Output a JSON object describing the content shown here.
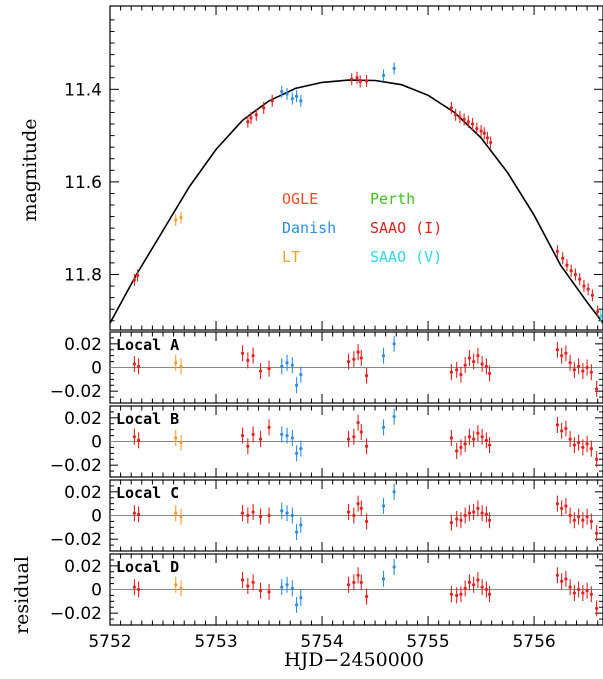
{
  "chart_data": [
    {
      "type": "scatter",
      "panel": "main",
      "ylabel": "magnitude",
      "y_inverted": true,
      "xlim": [
        5752,
        5756.65
      ],
      "ylim": [
        11.92,
        11.22
      ],
      "yticks": [
        11.4,
        11.6,
        11.8
      ],
      "ytick_labels": [
        "11.4",
        "11.6",
        "11.8"
      ],
      "grid": false,
      "legend_position": "center",
      "legend": [
        {
          "name": "OGLE",
          "color": "#ff4c1f"
        },
        {
          "name": "Perth",
          "color": "#3ec61c"
        },
        {
          "name": "Danish",
          "color": "#2c8ee6"
        },
        {
          "name": "SAAO (I)",
          "color": "#e6221e"
        },
        {
          "name": "LT",
          "color": "#f59e2a"
        },
        {
          "name": "SAAO (V)",
          "color": "#2fd9e8"
        }
      ],
      "model_curve": {
        "x": [
          5752.0,
          5752.25,
          5752.5,
          5752.75,
          5753.0,
          5753.25,
          5753.5,
          5753.75,
          5754.0,
          5754.25,
          5754.5,
          5754.75,
          5755.0,
          5755.25,
          5755.5,
          5755.75,
          5756.0,
          5756.25,
          5756.5,
          5756.65
        ],
        "y": [
          11.905,
          11.8,
          11.705,
          11.61,
          11.53,
          11.467,
          11.425,
          11.398,
          11.385,
          11.38,
          11.381,
          11.39,
          11.413,
          11.45,
          11.505,
          11.58,
          11.672,
          11.78,
          11.86,
          11.905
        ]
      },
      "series": [
        {
          "name": "SAAO (I)",
          "points": [
            [
              5752.23,
              11.812
            ],
            [
              5752.26,
              11.802
            ],
            [
              5753.3,
              11.47
            ],
            [
              5753.33,
              11.462
            ],
            [
              5753.38,
              11.455
            ],
            [
              5753.45,
              11.44
            ],
            [
              5753.53,
              11.425
            ],
            [
              5754.28,
              11.378
            ],
            [
              5754.33,
              11.375
            ],
            [
              5754.36,
              11.383
            ],
            [
              5754.42,
              11.382
            ],
            [
              5755.22,
              11.44
            ],
            [
              5755.26,
              11.455
            ],
            [
              5755.3,
              11.46
            ],
            [
              5755.34,
              11.465
            ],
            [
              5755.38,
              11.47
            ],
            [
              5755.42,
              11.475
            ],
            [
              5755.46,
              11.485
            ],
            [
              5755.5,
              11.49
            ],
            [
              5755.53,
              11.495
            ],
            [
              5755.56,
              11.505
            ],
            [
              5755.59,
              11.515
            ],
            [
              5756.22,
              11.75
            ],
            [
              5756.27,
              11.765
            ],
            [
              5756.31,
              11.78
            ],
            [
              5756.35,
              11.792
            ],
            [
              5756.39,
              11.8
            ],
            [
              5756.43,
              11.81
            ],
            [
              5756.47,
              11.825
            ],
            [
              5756.51,
              11.832
            ],
            [
              5756.55,
              11.845
            ],
            [
              5756.6,
              11.88
            ]
          ]
        },
        {
          "name": "LT",
          "points": [
            [
              5752.62,
              11.682
            ],
            [
              5752.67,
              11.677
            ]
          ]
        },
        {
          "name": "Danish",
          "points": [
            [
              5753.62,
              11.405
            ],
            [
              5753.67,
              11.41
            ],
            [
              5753.72,
              11.42
            ],
            [
              5753.76,
              11.415
            ],
            [
              5753.8,
              11.425
            ],
            [
              5754.58,
              11.37
            ],
            [
              5754.68,
              11.355
            ]
          ]
        },
        {
          "name": "SAAO (V)",
          "points": [
            [
              5756.63,
              11.89
            ]
          ]
        }
      ]
    },
    {
      "type": "scatter",
      "panel": "residual",
      "label": "Local A",
      "ylim": [
        -0.03,
        0.03
      ],
      "yticks": [
        0.02,
        0,
        -0.02
      ],
      "ytick_labels": [
        "0.02",
        "0",
        "−0.02"
      ],
      "series": [
        {
          "name": "SAAO (I)",
          "points": [
            [
              5752.23,
              0.003
            ],
            [
              5752.27,
              0.001
            ],
            [
              5753.25,
              0.012
            ],
            [
              5753.3,
              0.006
            ],
            [
              5753.35,
              0.01
            ],
            [
              5753.42,
              -0.003
            ],
            [
              5753.5,
              -0.001
            ],
            [
              5754.25,
              0.005
            ],
            [
              5754.3,
              0.007
            ],
            [
              5754.34,
              0.013
            ],
            [
              5754.37,
              0.008
            ],
            [
              5754.42,
              -0.007
            ],
            [
              5755.22,
              -0.004
            ],
            [
              5755.27,
              -0.002
            ],
            [
              5755.31,
              -0.006
            ],
            [
              5755.35,
              0.002
            ],
            [
              5755.39,
              0.008
            ],
            [
              5755.43,
              0.005
            ],
            [
              5755.47,
              0.01
            ],
            [
              5755.51,
              0.003
            ],
            [
              5755.55,
              0.001
            ],
            [
              5755.58,
              -0.005
            ],
            [
              5756.22,
              0.015
            ],
            [
              5756.26,
              0.01
            ],
            [
              5756.3,
              0.012
            ],
            [
              5756.34,
              0.004
            ],
            [
              5756.38,
              -0.002
            ],
            [
              5756.42,
              0.001
            ],
            [
              5756.46,
              -0.003
            ],
            [
              5756.5,
              0.0
            ],
            [
              5756.54,
              -0.004
            ],
            [
              5756.59,
              -0.018
            ]
          ]
        },
        {
          "name": "LT",
          "points": [
            [
              5752.62,
              0.004
            ],
            [
              5752.67,
              0.001
            ]
          ]
        },
        {
          "name": "Danish",
          "points": [
            [
              5753.62,
              0.001
            ],
            [
              5753.67,
              0.004
            ],
            [
              5753.72,
              0.002
            ],
            [
              5753.76,
              -0.015
            ],
            [
              5753.8,
              -0.006
            ],
            [
              5754.58,
              0.01
            ],
            [
              5754.68,
              0.02
            ]
          ]
        }
      ]
    },
    {
      "type": "scatter",
      "panel": "residual",
      "label": "Local B",
      "ylim": [
        -0.03,
        0.03
      ],
      "yticks": [
        0.02,
        0,
        -0.02
      ],
      "ytick_labels": [
        "0.02",
        "0",
        "−0.02"
      ],
      "series": [
        {
          "name": "SAAO (I)",
          "points": [
            [
              5752.23,
              0.004
            ],
            [
              5752.27,
              0.001
            ],
            [
              5753.25,
              0.005
            ],
            [
              5753.3,
              -0.004
            ],
            [
              5753.35,
              0.006
            ],
            [
              5753.42,
              0.002
            ],
            [
              5753.5,
              0.012
            ],
            [
              5754.25,
              0.002
            ],
            [
              5754.3,
              0.004
            ],
            [
              5754.34,
              0.016
            ],
            [
              5754.37,
              0.008
            ],
            [
              5754.42,
              -0.004
            ],
            [
              5755.22,
              0.003
            ],
            [
              5755.27,
              -0.008
            ],
            [
              5755.31,
              -0.005
            ],
            [
              5755.35,
              -0.002
            ],
            [
              5755.39,
              0.004
            ],
            [
              5755.43,
              0.002
            ],
            [
              5755.47,
              0.007
            ],
            [
              5755.51,
              0.004
            ],
            [
              5755.55,
              0.001
            ],
            [
              5755.58,
              -0.003
            ],
            [
              5756.22,
              0.014
            ],
            [
              5756.26,
              0.009
            ],
            [
              5756.3,
              0.011
            ],
            [
              5756.34,
              0.002
            ],
            [
              5756.38,
              -0.003
            ],
            [
              5756.42,
              -0.001
            ],
            [
              5756.46,
              -0.005
            ],
            [
              5756.5,
              -0.002
            ],
            [
              5756.54,
              -0.006
            ],
            [
              5756.59,
              -0.015
            ]
          ]
        },
        {
          "name": "LT",
          "points": [
            [
              5752.62,
              0.003
            ],
            [
              5752.67,
              -0.001
            ]
          ]
        },
        {
          "name": "Danish",
          "points": [
            [
              5753.62,
              0.006
            ],
            [
              5753.67,
              0.005
            ],
            [
              5753.72,
              0.003
            ],
            [
              5753.76,
              -0.01
            ],
            [
              5753.8,
              -0.006
            ],
            [
              5754.58,
              0.012
            ],
            [
              5754.68,
              0.021
            ]
          ]
        }
      ]
    },
    {
      "type": "scatter",
      "panel": "residual",
      "label": "Local C",
      "ylim": [
        -0.03,
        0.03
      ],
      "yticks": [
        0.02,
        0,
        -0.02
      ],
      "ytick_labels": [
        "0.02",
        "0",
        "−0.02"
      ],
      "series": [
        {
          "name": "SAAO (I)",
          "points": [
            [
              5752.23,
              0.002
            ],
            [
              5752.27,
              0.001
            ],
            [
              5753.25,
              0.002
            ],
            [
              5753.3,
              0.0
            ],
            [
              5753.35,
              0.003
            ],
            [
              5753.42,
              -0.001
            ],
            [
              5753.5,
              0.0
            ],
            [
              5754.25,
              0.003
            ],
            [
              5754.3,
              0.0
            ],
            [
              5754.34,
              0.01
            ],
            [
              5754.37,
              0.006
            ],
            [
              5754.42,
              -0.005
            ],
            [
              5755.22,
              -0.006
            ],
            [
              5755.27,
              -0.003
            ],
            [
              5755.31,
              -0.004
            ],
            [
              5755.35,
              0.0
            ],
            [
              5755.39,
              0.002
            ],
            [
              5755.43,
              0.003
            ],
            [
              5755.47,
              0.006
            ],
            [
              5755.51,
              0.002
            ],
            [
              5755.55,
              0.001
            ],
            [
              5755.58,
              -0.004
            ],
            [
              5756.22,
              0.01
            ],
            [
              5756.26,
              0.006
            ],
            [
              5756.3,
              0.008
            ],
            [
              5756.34,
              0.0
            ],
            [
              5756.38,
              -0.004
            ],
            [
              5756.42,
              -0.001
            ],
            [
              5756.46,
              -0.004
            ],
            [
              5756.5,
              -0.001
            ],
            [
              5756.54,
              -0.005
            ],
            [
              5756.59,
              -0.015
            ]
          ]
        },
        {
          "name": "LT",
          "points": [
            [
              5752.62,
              0.002
            ],
            [
              5752.67,
              -0.001
            ]
          ]
        },
        {
          "name": "Danish",
          "points": [
            [
              5753.62,
              0.004
            ],
            [
              5753.67,
              0.002
            ],
            [
              5753.72,
              0.0
            ],
            [
              5753.76,
              -0.014
            ],
            [
              5753.8,
              -0.008
            ],
            [
              5754.58,
              0.008
            ],
            [
              5754.68,
              0.02
            ]
          ]
        }
      ]
    },
    {
      "type": "scatter",
      "panel": "residual",
      "label": "Local D",
      "ylabel": "residual",
      "xlabel": "HJD−2450000",
      "xticks": [
        5752,
        5753,
        5754,
        5755,
        5756
      ],
      "xtick_labels": [
        "5752",
        "5753",
        "5754",
        "5755",
        "5756"
      ],
      "ylim": [
        -0.03,
        0.03
      ],
      "yticks": [
        0.02,
        0,
        -0.02
      ],
      "ytick_labels": [
        "0.02",
        "0",
        "−0.02"
      ],
      "series": [
        {
          "name": "SAAO (I)",
          "points": [
            [
              5752.23,
              0.002
            ],
            [
              5752.27,
              0.0
            ],
            [
              5753.25,
              0.008
            ],
            [
              5753.3,
              0.003
            ],
            [
              5753.35,
              0.006
            ],
            [
              5753.42,
              -0.001
            ],
            [
              5753.5,
              -0.002
            ],
            [
              5754.25,
              0.004
            ],
            [
              5754.3,
              0.006
            ],
            [
              5754.34,
              0.012
            ],
            [
              5754.37,
              0.006
            ],
            [
              5754.42,
              -0.006
            ],
            [
              5755.22,
              -0.004
            ],
            [
              5755.27,
              -0.005
            ],
            [
              5755.31,
              -0.004
            ],
            [
              5755.35,
              0.001
            ],
            [
              5755.39,
              0.006
            ],
            [
              5755.43,
              0.004
            ],
            [
              5755.47,
              0.008
            ],
            [
              5755.51,
              0.002
            ],
            [
              5755.55,
              0.0
            ],
            [
              5755.58,
              -0.004
            ],
            [
              5756.22,
              0.012
            ],
            [
              5756.26,
              0.007
            ],
            [
              5756.3,
              0.009
            ],
            [
              5756.34,
              0.002
            ],
            [
              5756.38,
              -0.003
            ],
            [
              5756.42,
              0.0
            ],
            [
              5756.46,
              -0.003
            ],
            [
              5756.5,
              -0.001
            ],
            [
              5756.54,
              -0.004
            ],
            [
              5756.59,
              -0.016
            ]
          ]
        },
        {
          "name": "LT",
          "points": [
            [
              5752.62,
              0.004
            ],
            [
              5752.67,
              0.001
            ]
          ]
        },
        {
          "name": "Danish",
          "points": [
            [
              5753.62,
              0.002
            ],
            [
              5753.67,
              0.004
            ],
            [
              5753.72,
              0.001
            ],
            [
              5753.76,
              -0.013
            ],
            [
              5753.8,
              -0.007
            ],
            [
              5754.58,
              0.009
            ],
            [
              5754.68,
              0.019
            ]
          ]
        }
      ]
    }
  ]
}
